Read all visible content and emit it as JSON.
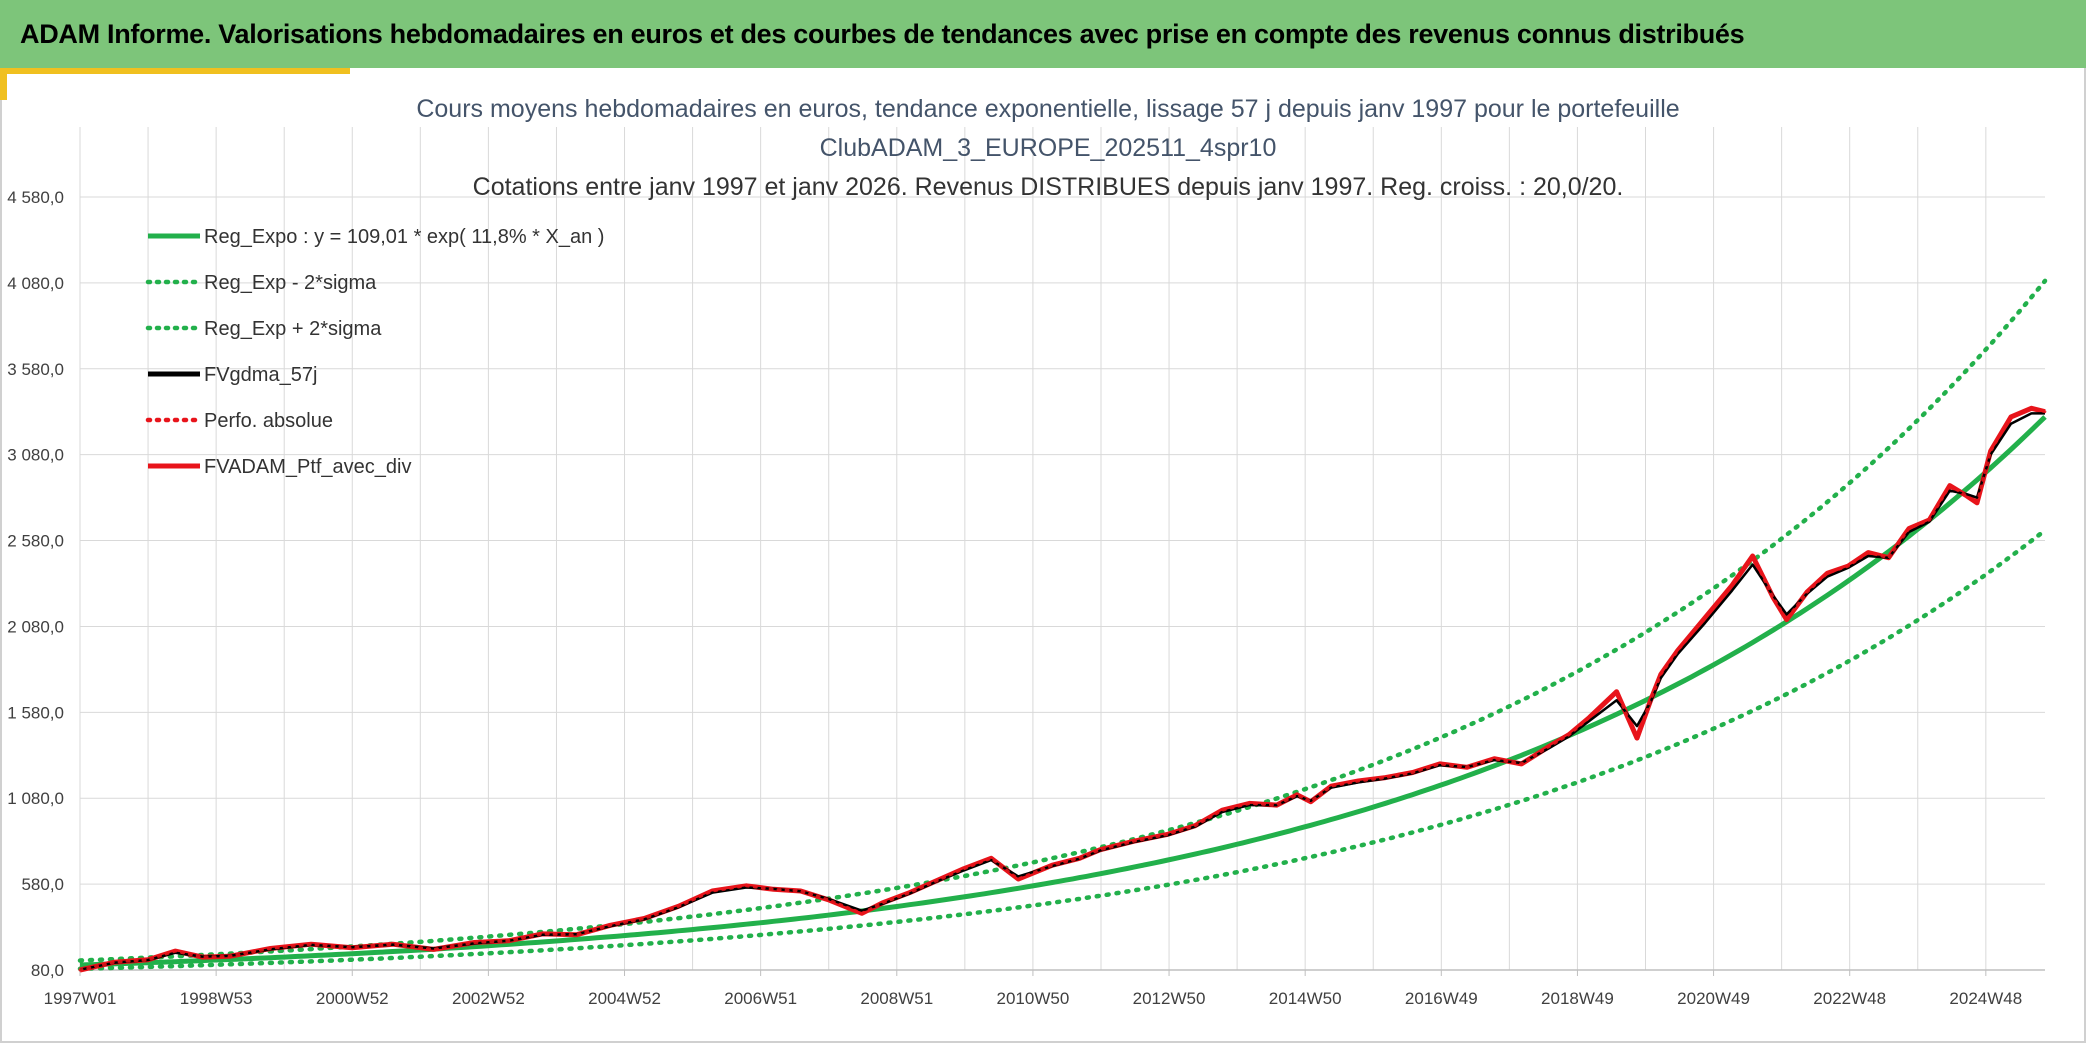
{
  "banner": {
    "title": "ADAM Informe. Valorisations hebdomadaires en euros et des courbes de tendances avec prise en compte des revenus connus distribués"
  },
  "colors": {
    "banner_bg": "#7dc57a",
    "accent": "#f0c020",
    "regression": "#22b04b",
    "fv_gdma": "#000000",
    "ptf": "#e8141b",
    "grid": "#d9d9d9"
  },
  "chart_data": {
    "type": "line",
    "title_lines": [
      "Cours moyens hebdomadaires en euros, tendance exponentielle, lissage 57 j depuis janv 1997 pour le portefeuille",
      "ClubADAM_3_EUROPE_202511_4spr10",
      "Cotations entre janv 1997 et janv 2026. Revenus DISTRIBUES depuis janv 1997. Reg. croiss. : 20,0/20."
    ],
    "xlabel": "",
    "ylabel": "",
    "x_tick_labels": [
      "1997W01",
      "1998W53",
      "2000W52",
      "2002W52",
      "2004W52",
      "2006W51",
      "2008W51",
      "2010W50",
      "2012W50",
      "2014W50",
      "2016W49",
      "2018W49",
      "2020W49",
      "2022W48",
      "2024W48"
    ],
    "x_range_years": [
      1997.0,
      2025.9
    ],
    "y_tick_labels": [
      "80,0",
      "580,0",
      "1 080,0",
      "1 580,0",
      "2 080,0",
      "2 580,0",
      "3 080,0",
      "3 580,0",
      "4 080,0",
      "4 580,0"
    ],
    "ylim": [
      80,
      4580
    ],
    "y_tick_step": 500,
    "grid": true,
    "legend_position": "top-left",
    "legend": [
      {
        "label": "Reg_Expo : y = 109,01 * exp( 11,8% *  X_an )",
        "style": "solid",
        "color": "#22b04b"
      },
      {
        "label": "Reg_Exp - 2*sigma",
        "style": "dotted",
        "color": "#22b04b"
      },
      {
        "label": "Reg_Exp + 2*sigma",
        "style": "dotted",
        "color": "#22b04b"
      },
      {
        "label": "FVgdma_57j",
        "style": "solid",
        "color": "#000000"
      },
      {
        "label": "Perfo. absolue",
        "style": "dotted",
        "color": "#e8141b"
      },
      {
        "label": "FVADAM_Ptf_avec_div",
        "style": "solid",
        "color": "#e8141b"
      }
    ],
    "regression": {
      "a": 109.01,
      "b": 0.118,
      "x0": 1997.0
    },
    "series": [
      {
        "name": "FVADAM_Ptf_avec_div",
        "x": [
          1997.0,
          1997.5,
          1998.0,
          1998.4,
          1998.8,
          1999.2,
          1999.8,
          2000.4,
          2001.0,
          2001.6,
          2002.2,
          2002.8,
          2003.3,
          2003.8,
          2004.3,
          2004.8,
          2005.3,
          2005.8,
          2006.3,
          2006.8,
          2007.2,
          2007.6,
          2008.0,
          2008.5,
          2008.8,
          2009.2,
          2009.6,
          2010.0,
          2010.4,
          2010.8,
          2011.3,
          2011.7,
          2012.0,
          2012.5,
          2013.0,
          2013.4,
          2013.8,
          2014.2,
          2014.6,
          2014.9,
          2015.1,
          2015.4,
          2015.8,
          2016.2,
          2016.6,
          2017.0,
          2017.4,
          2017.8,
          2018.2,
          2018.6,
          2018.9,
          2019.2,
          2019.6,
          2019.9,
          2020.1,
          2020.25,
          2020.5,
          2020.9,
          2021.3,
          2021.6,
          2021.9,
          2022.1,
          2022.4,
          2022.7,
          2023.0,
          2023.3,
          2023.6,
          2023.9,
          2024.2,
          2024.5,
          2024.75,
          2024.9,
          2025.1,
          2025.4,
          2025.7,
          2025.9
        ],
        "y": [
          80,
          125,
          140,
          190,
          155,
          160,
          205,
          230,
          210,
          230,
          200,
          240,
          250,
          290,
          285,
          340,
          380,
          450,
          540,
          570,
          550,
          540,
          490,
          410,
          470,
          530,
          600,
          670,
          730,
          610,
          690,
          730,
          780,
          830,
          870,
          920,
          1010,
          1050,
          1040,
          1100,
          1060,
          1150,
          1180,
          1200,
          1230,
          1280,
          1260,
          1310,
          1280,
          1380,
          1450,
          1550,
          1700,
          1430,
          1650,
          1800,
          1940,
          2130,
          2320,
          2490,
          2250,
          2120,
          2280,
          2390,
          2430,
          2510,
          2480,
          2650,
          2700,
          2900,
          2840,
          2800,
          3100,
          3300,
          3350,
          3330
        ]
      },
      {
        "name": "FVgdma_57j",
        "x": [
          1997.0,
          1997.5,
          1998.0,
          1998.4,
          1998.8,
          1999.2,
          1999.8,
          2000.4,
          2001.0,
          2001.6,
          2002.2,
          2002.8,
          2003.3,
          2003.8,
          2004.3,
          2004.8,
          2005.3,
          2005.8,
          2006.3,
          2006.8,
          2007.2,
          2007.6,
          2008.0,
          2008.5,
          2008.8,
          2009.2,
          2009.6,
          2010.0,
          2010.4,
          2010.8,
          2011.3,
          2011.7,
          2012.0,
          2012.5,
          2013.0,
          2013.4,
          2013.8,
          2014.2,
          2014.6,
          2014.9,
          2015.1,
          2015.4,
          2015.8,
          2016.2,
          2016.6,
          2017.0,
          2017.4,
          2017.8,
          2018.2,
          2018.6,
          2018.9,
          2019.2,
          2019.6,
          2019.9,
          2020.1,
          2020.25,
          2020.5,
          2020.9,
          2021.3,
          2021.6,
          2021.9,
          2022.1,
          2022.4,
          2022.7,
          2023.0,
          2023.3,
          2023.6,
          2023.9,
          2024.2,
          2024.5,
          2024.75,
          2024.9,
          2025.1,
          2025.4,
          2025.7,
          2025.9
        ],
        "y": [
          82,
          122,
          138,
          180,
          158,
          162,
          200,
          226,
          212,
          228,
          205,
          235,
          250,
          285,
          288,
          335,
          375,
          445,
          530,
          560,
          552,
          538,
          495,
          425,
          465,
          525,
          595,
          660,
          720,
          625,
          685,
          728,
          775,
          825,
          865,
          915,
          1000,
          1040,
          1040,
          1092,
          1065,
          1142,
          1172,
          1195,
          1225,
          1272,
          1262,
          1302,
          1285,
          1370,
          1440,
          1530,
          1650,
          1500,
          1640,
          1780,
          1920,
          2100,
          2290,
          2440,
          2260,
          2150,
          2270,
          2370,
          2420,
          2490,
          2480,
          2630,
          2690,
          2870,
          2850,
          2830,
          3080,
          3260,
          3320,
          3320
        ]
      }
    ]
  }
}
